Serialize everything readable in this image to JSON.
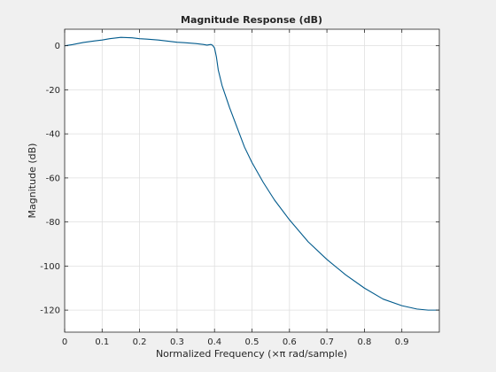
{
  "chart_data": {
    "type": "line",
    "title": "Magnitude Response (dB)",
    "xlabel": "Normalized Frequency (×π rad/sample)",
    "ylabel": "Magnitude (dB)",
    "xlim": [
      0,
      1
    ],
    "ylim": [
      -130,
      7.5
    ],
    "xticks": [
      0,
      0.1,
      0.2,
      0.3,
      0.4,
      0.5,
      0.6,
      0.7,
      0.8,
      0.9
    ],
    "xtick_labels": [
      "0",
      "0.1",
      "0.2",
      "0.3",
      "0.4",
      "0.5",
      "0.6",
      "0.7",
      "0.8",
      "0.9"
    ],
    "yticks": [
      0,
      -20,
      -40,
      -60,
      -80,
      -100,
      -120
    ],
    "ytick_labels": [
      "0",
      "-20",
      "-40",
      "-60",
      "-80",
      "-100",
      "-120"
    ],
    "grid": true,
    "line_color": "#005a8c",
    "series": [
      {
        "x": [
          0,
          0.02,
          0.05,
          0.08,
          0.1,
          0.12,
          0.15,
          0.18,
          0.2,
          0.22,
          0.25,
          0.28,
          0.3,
          0.32,
          0.35,
          0.37,
          0.38,
          0.39,
          0.395,
          0.4,
          0.405,
          0.41,
          0.42,
          0.44,
          0.46,
          0.48,
          0.5,
          0.53,
          0.56,
          0.6,
          0.65,
          0.7,
          0.75,
          0.8,
          0.85,
          0.9,
          0.94,
          0.97,
          1.0
        ],
        "y": [
          0,
          0.5,
          1.5,
          2.2,
          2.6,
          3.2,
          3.8,
          3.6,
          3.2,
          3.0,
          2.6,
          2.0,
          1.6,
          1.4,
          1.0,
          0.6,
          0.3,
          0.6,
          0.2,
          -1,
          -5,
          -11,
          -18,
          -28,
          -37,
          -46,
          -53,
          -62,
          -70,
          -79,
          -89,
          -97,
          -104,
          -110,
          -115,
          -118,
          -119.5,
          -120,
          -120
        ]
      }
    ]
  }
}
